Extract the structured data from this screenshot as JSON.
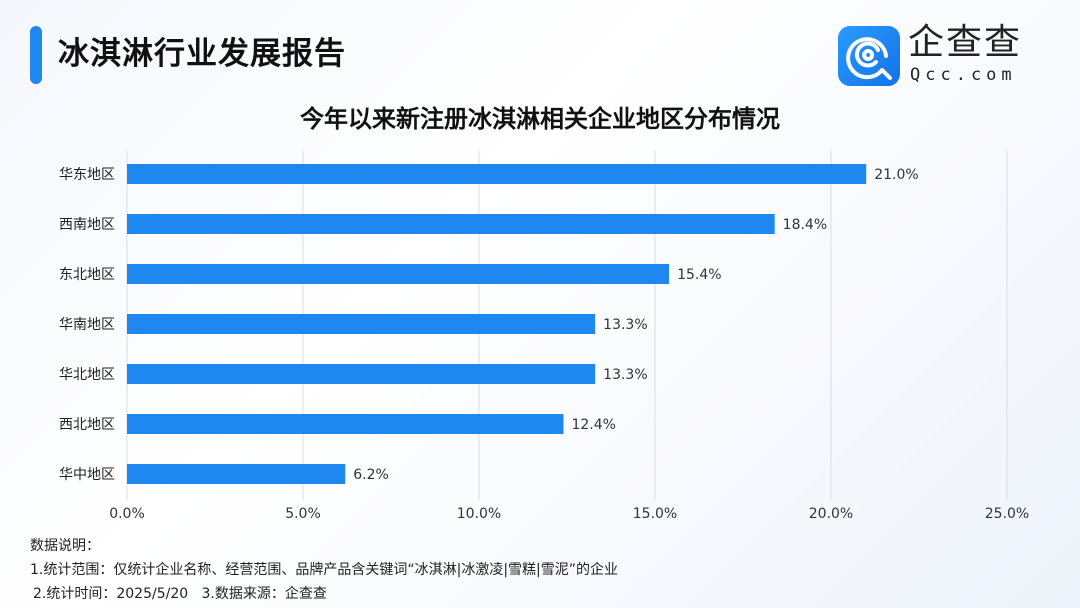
{
  "header": {
    "title": "冰淇淋行业发展报告",
    "logo_cn": "企查查",
    "logo_en": "Qcc.com"
  },
  "chart_data": {
    "type": "bar",
    "orientation": "horizontal",
    "title": "今年以来新注册冰淇淋相关企业地区分布情况",
    "categories": [
      "华东地区",
      "西南地区",
      "东北地区",
      "华南地区",
      "华北地区",
      "西北地区",
      "华中地区"
    ],
    "values": [
      21.0,
      18.4,
      15.4,
      13.3,
      13.3,
      12.4,
      6.2
    ],
    "data_labels": [
      "21.0%",
      "18.4%",
      "15.4%",
      "13.3%",
      "13.3%",
      "12.4%",
      "6.2%"
    ],
    "xlim": [
      0,
      25
    ],
    "x_ticks": [
      "0.0%",
      "5.0%",
      "10.0%",
      "15.0%",
      "20.0%",
      "25.0%"
    ],
    "grid": true,
    "bar_color": "#1e88f0"
  },
  "notes": {
    "heading": "数据说明：",
    "line1": "1.统计范围：仅统计企业名称、经营范围、品牌产品含关键词“冰淇淋|冰激凌|雪糕|雪泥”的企业",
    "line2": "2.统计时间：2025/5/20   3.数据来源：企查查"
  }
}
